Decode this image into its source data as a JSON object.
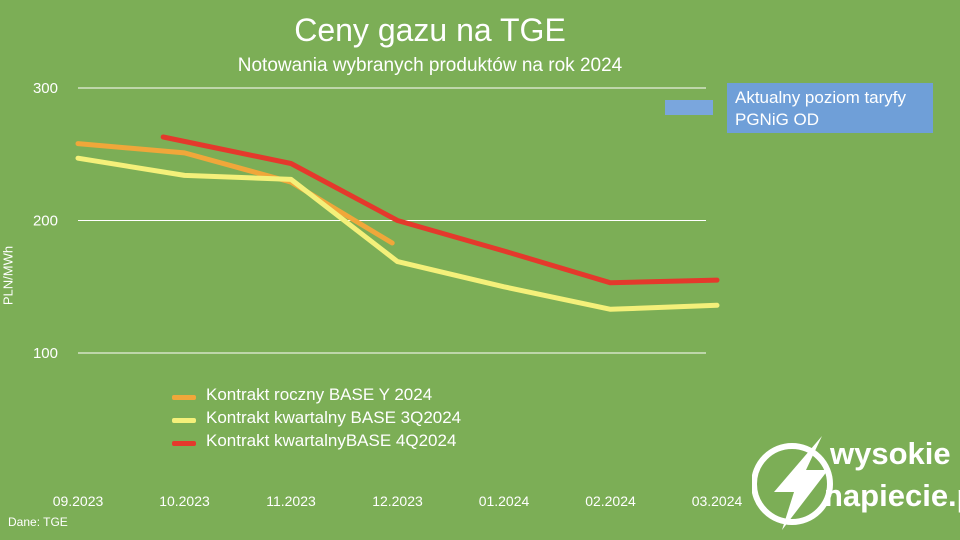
{
  "chart_data": {
    "type": "line",
    "title": "Ceny gazu na TGE",
    "subtitle": "Notowania wybranych produktów na rok 2024",
    "ylabel": "PLN/MWh",
    "xlabel": "",
    "ylim": [
      100,
      300
    ],
    "yticks": [
      100,
      200,
      300
    ],
    "categories": [
      "09.2023",
      "10.2023",
      "11.2023",
      "12.2023",
      "01.2024",
      "02.2024",
      "03.2024"
    ],
    "grid": true,
    "legend_position": "bottom-left",
    "series": [
      {
        "name": "Kontrakt roczny BASE Y 2024",
        "color": "#f0a73a",
        "points": [
          [
            0,
            258
          ],
          [
            1,
            251
          ],
          [
            2,
            229
          ],
          [
            2.95,
            183
          ]
        ]
      },
      {
        "name": "Kontrakt kwartalny BASE 3Q2024",
        "color": "#f4f07a",
        "points": [
          [
            0,
            247
          ],
          [
            1,
            234
          ],
          [
            2,
            231
          ],
          [
            3,
            169
          ],
          [
            4,
            150
          ],
          [
            5,
            133
          ],
          [
            6,
            136
          ]
        ]
      },
      {
        "name": "Kontrakt kwartalnyBASE 4Q2024",
        "color": "#e4392c",
        "points": [
          [
            0.8,
            263
          ],
          [
            2,
            243
          ],
          [
            3,
            200
          ],
          [
            4,
            177
          ],
          [
            5,
            153
          ],
          [
            6,
            155
          ]
        ]
      }
    ],
    "annotation": {
      "text_line1": "Aktualny poziom taryfy",
      "text_line2": "PGNiG OD",
      "color": "#6f9fd8"
    },
    "source": "Dane: TGE"
  },
  "logo": {
    "top": "wysokie",
    "bottom": "napiecie.pl"
  }
}
